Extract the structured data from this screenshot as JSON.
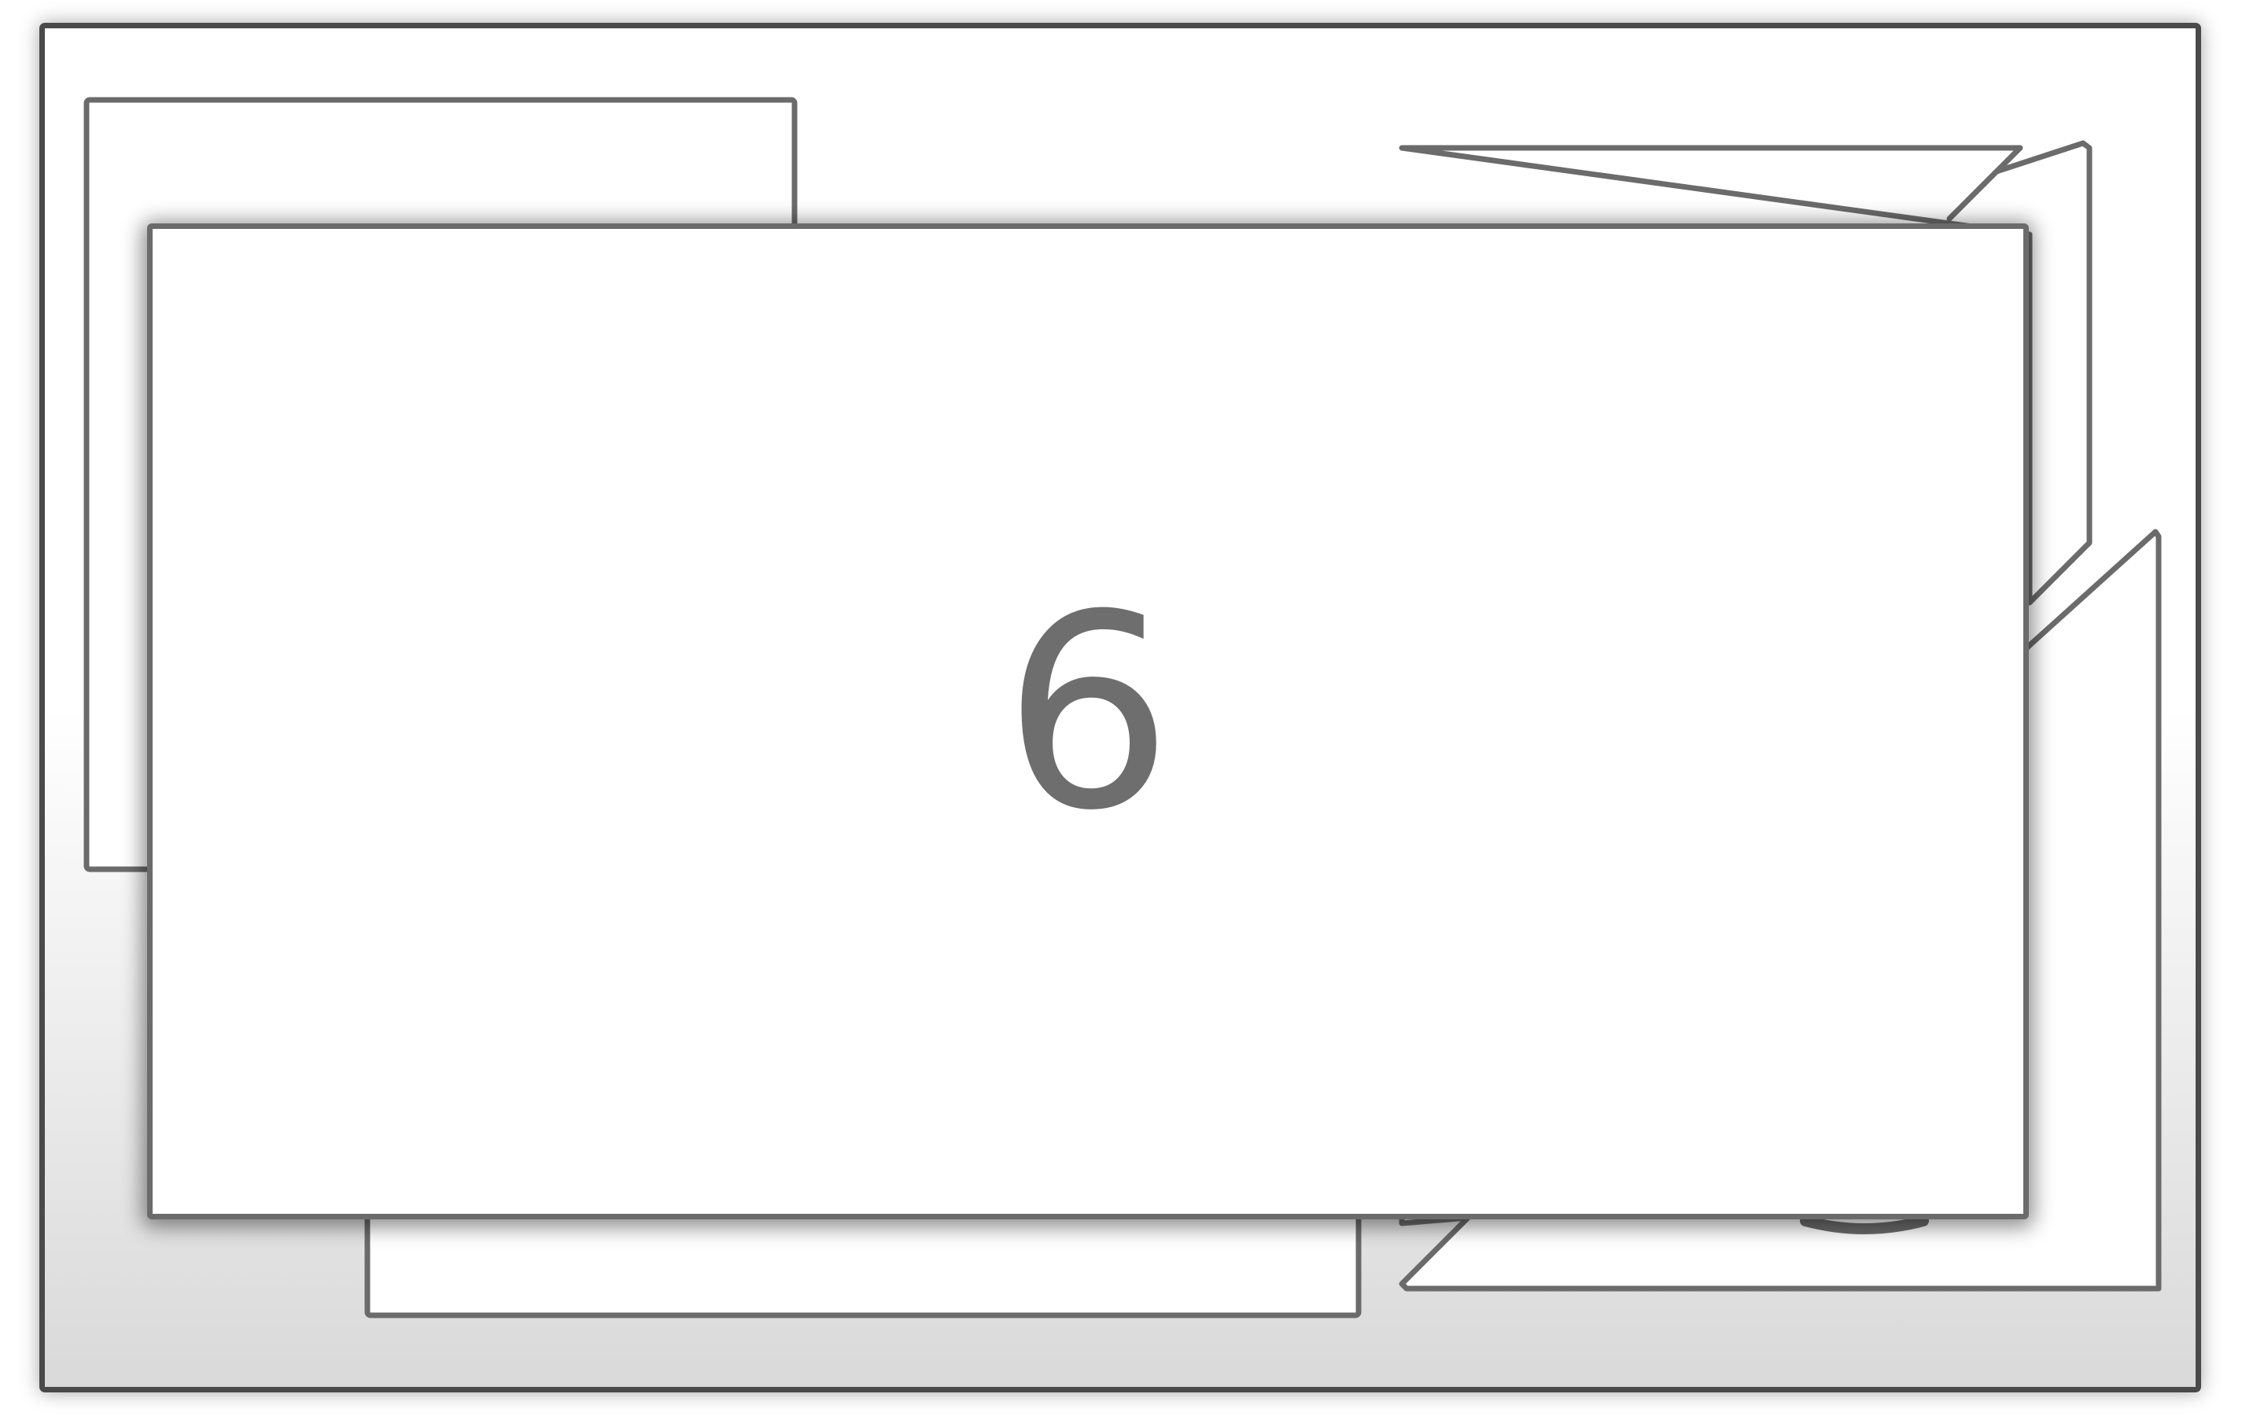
{
  "switcher": {
    "front_card_label": "6"
  },
  "colors": {
    "card_border": "#6b6b6b",
    "frame_border": "#4a4a4a",
    "number_text": "#6e6e6e"
  }
}
